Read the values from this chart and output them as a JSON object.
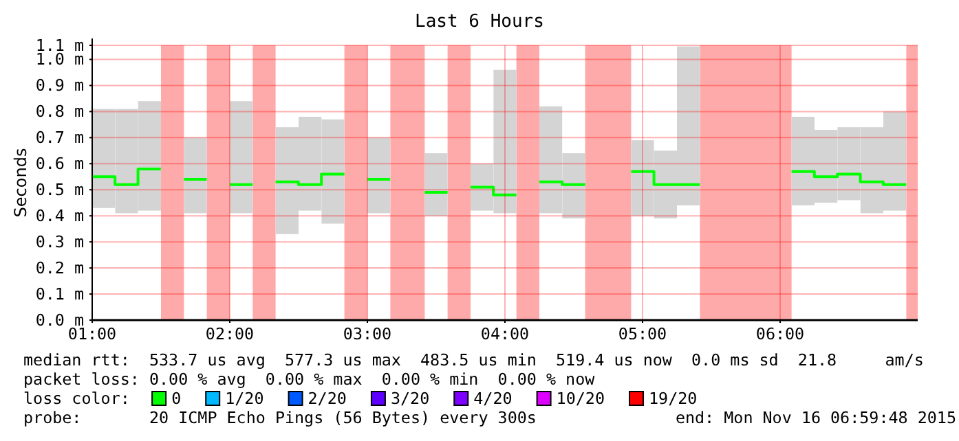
{
  "chart_data": {
    "type": "bar",
    "title": "Last 6 Hours",
    "ylabel": "Seconds",
    "x": [
      1.083,
      1.25,
      1.417,
      1.75,
      2.083,
      2.417,
      2.583,
      2.75,
      3.083,
      3.5,
      3.833,
      4.0,
      4.333,
      4.5,
      5.0,
      5.167,
      5.333,
      6.167,
      6.333,
      6.5,
      6.667,
      6.833
    ],
    "series": [
      {
        "color": "#d4d4d4",
        "base": [
          0.43,
          0.41,
          0.42,
          0.41,
          0.41,
          0.33,
          0.42,
          0.37,
          0.41,
          0.4,
          0.42,
          0.41,
          0.41,
          0.39,
          0.4,
          0.39,
          0.44,
          0.44,
          0.45,
          0.46,
          0.41,
          0.42
        ],
        "values": [
          0.38,
          0.4,
          0.42,
          0.29,
          0.43,
          0.41,
          0.36,
          0.4,
          0.29,
          0.24,
          0.18,
          0.55,
          0.41,
          0.25,
          0.29,
          0.26,
          0.61,
          0.34,
          0.28,
          0.28,
          0.33,
          0.38
        ]
      },
      {
        "type": "step",
        "name": "0",
        "color": "#00ff00",
        "x": [
          1.0,
          1.167,
          1.333,
          1.667,
          2.0,
          2.333,
          2.5,
          2.667,
          3.0,
          3.417,
          3.75,
          3.917,
          4.25,
          4.417,
          4.917,
          5.083,
          5.25,
          6.083,
          6.25,
          6.417,
          6.583,
          6.75,
          6.917
        ],
        "values": [
          0.55,
          0.52,
          0.58,
          0.54,
          0.52,
          0.53,
          0.52,
          0.56,
          0.54,
          0.49,
          0.51,
          0.48,
          0.53,
          0.52,
          0.57,
          0.52,
          0.52,
          0.57,
          0.55,
          0.56,
          0.53,
          0.52,
          0.52
        ]
      },
      {
        "type": "step",
        "name": "1/20",
        "color": "#00b8ff",
        "values": [
          null,
          null,
          null,
          null,
          null,
          null,
          null,
          null,
          null,
          null,
          null,
          null,
          null,
          null,
          null,
          null,
          null,
          null,
          null,
          null,
          null,
          null
        ]
      },
      {
        "type": "step",
        "name": "2/20",
        "color": "#0059ff",
        "values": [
          null,
          null,
          null,
          null,
          null,
          null,
          null,
          null,
          null,
          null,
          null,
          null,
          null,
          null,
          null,
          null,
          null,
          null,
          null,
          null,
          null,
          null
        ]
      },
      {
        "type": "step",
        "name": "3/20",
        "color": "#5e00ff",
        "values": [
          null,
          null,
          null,
          null,
          null,
          null,
          null,
          null,
          null,
          null,
          null,
          null,
          null,
          null,
          null,
          null,
          null,
          null,
          null,
          null,
          null,
          null
        ]
      },
      {
        "type": "step",
        "name": "4/20",
        "color": "#7e00ff",
        "values": [
          null,
          null,
          null,
          null,
          null,
          null,
          null,
          null,
          null,
          null,
          null,
          null,
          null,
          null,
          null,
          null,
          null,
          null,
          null,
          null,
          null,
          null
        ]
      },
      {
        "type": "step",
        "name": "10/20",
        "color": "#dd00ff",
        "values": [
          null,
          null,
          null,
          null,
          null,
          null,
          null,
          null,
          null,
          null,
          null,
          null,
          null,
          null,
          null,
          null,
          null,
          null,
          null,
          null,
          null,
          null
        ]
      },
      {
        "type": "step",
        "name": "19/20",
        "color": "#ff0000",
        "values": [
          null,
          null,
          null,
          null,
          null,
          null,
          null,
          null,
          null,
          null,
          null,
          null,
          null,
          null,
          null,
          null,
          null,
          null,
          null,
          null,
          null,
          null
        ]
      }
    ],
    "bands": [
      {
        "axis": "x",
        "from": 1.5,
        "to": 1.667,
        "color": "#ffaaaa"
      },
      {
        "axis": "x",
        "from": 1.833,
        "to": 2.0,
        "color": "#ffaaaa"
      },
      {
        "axis": "x",
        "from": 2.167,
        "to": 2.333,
        "color": "#ffaaaa"
      },
      {
        "axis": "x",
        "from": 2.833,
        "to": 3.0,
        "color": "#ffaaaa"
      },
      {
        "axis": "x",
        "from": 3.167,
        "to": 3.417,
        "color": "#ffaaaa"
      },
      {
        "axis": "x",
        "from": 3.583,
        "to": 3.75,
        "color": "#ffaaaa"
      },
      {
        "axis": "x",
        "from": 4.083,
        "to": 4.25,
        "color": "#ffaaaa"
      },
      {
        "axis": "x",
        "from": 4.583,
        "to": 4.917,
        "color": "#ffaaaa"
      },
      {
        "axis": "x",
        "from": 5.417,
        "to": 6.083,
        "color": "#ffaaaa"
      },
      {
        "axis": "x",
        "from": 6.917,
        "to": 7.0,
        "color": "#ffaaaa"
      }
    ],
    "xlim": [
      1,
      7
    ],
    "xticks": [
      {
        "value": 1,
        "label": "01:00"
      },
      {
        "value": 2,
        "label": "02:00"
      },
      {
        "value": 3,
        "label": "03:00"
      },
      {
        "value": 4,
        "label": "04:00"
      },
      {
        "value": 5,
        "label": "05:00"
      },
      {
        "value": 6,
        "label": "06:00"
      }
    ],
    "ylim": [
      0,
      1.054
    ],
    "yticks": [
      {
        "value": 0,
        "label": "0.0 m"
      },
      {
        "value": 0.1,
        "label": "0.1 m"
      },
      {
        "value": 0.2,
        "label": "0.2 m"
      },
      {
        "value": 0.3,
        "label": "0.3 m"
      },
      {
        "value": 0.4,
        "label": "0.4 m"
      },
      {
        "value": 0.5,
        "label": "0.5 m"
      },
      {
        "value": 0.6,
        "label": "0.6 m"
      },
      {
        "value": 0.7,
        "label": "0.7 m"
      },
      {
        "value": 0.8,
        "label": "0.8 m"
      },
      {
        "value": 0.9,
        "label": "0.9 m"
      },
      {
        "value": 1.0,
        "label": "1.0 m"
      },
      {
        "value": 1.054,
        "label": "1.1 m"
      }
    ],
    "grid": true,
    "legend": "bottom",
    "legend_title": "loss color:",
    "annotations": [
      "median rtt:  533.7 us avg  577.3 us max  483.5 us min  519.4 us now  0.0 ms sd  21.8     am/s",
      "packet loss: 0.00 % avg  0.00 % max  0.00 % min  0.00 % now",
      "probe:       20 ICMP Echo Pings (56 Bytes) every 300s",
      "end: Mon Nov 16 06:59:48 2015"
    ]
  }
}
